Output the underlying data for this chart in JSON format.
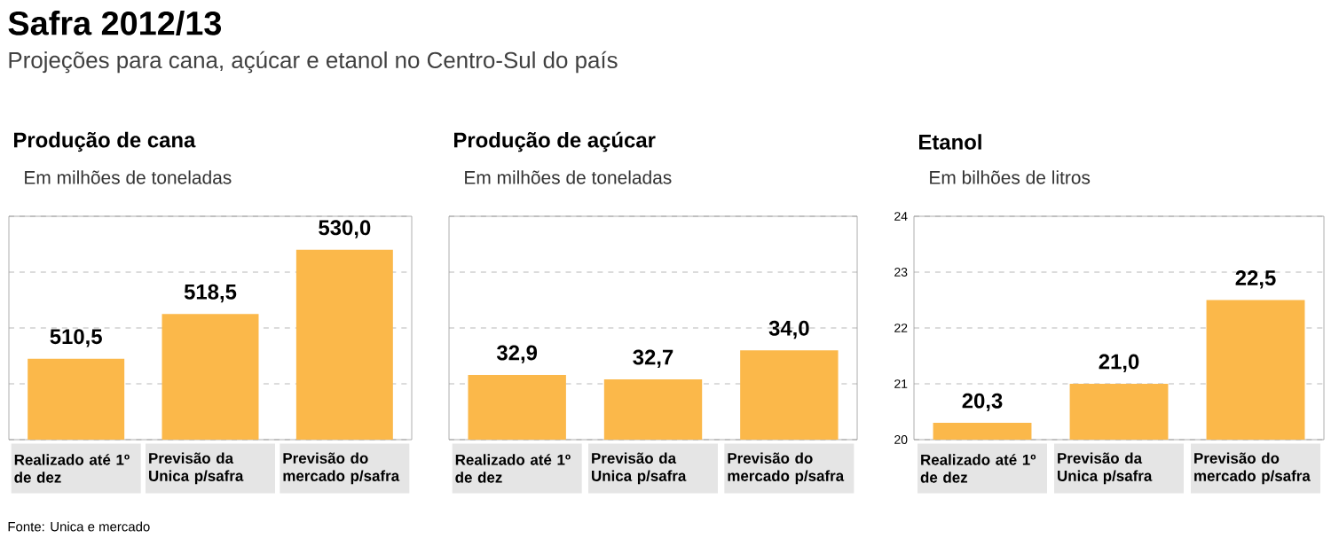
{
  "chart_data": [
    {
      "type": "other",
      "title": "Safra 2012/13",
      "subtitle": "Projeções para cana, açúcar e etanol no Centro-Sul do país",
      "annotations": [
        "Fonte: Unica e mercado"
      ]
    },
    {
      "type": "bar",
      "title": "Produção de cana",
      "subtitle": "Em milhões de toneladas",
      "categories": [
        "Realizado até 1º de dez",
        "Previsão da Unica p/safra",
        "Previsão do mercado p/safra"
      ],
      "values": [
        510.5,
        518.5,
        530.0
      ],
      "value_labels": [
        "510,5",
        "518,5",
        "530,0"
      ],
      "color": "#fbb84a",
      "ylim": [
        496,
        536
      ],
      "yticks": [
        {
          "value": 496,
          "label": null
        },
        {
          "value": 506,
          "label": null
        },
        {
          "value": 516,
          "label": null
        },
        {
          "value": 526,
          "label": null
        },
        {
          "value": 536,
          "label": null
        }
      ],
      "grid": "y",
      "tick_labels": "x"
    },
    {
      "type": "bar",
      "title": "Produção de açúcar",
      "subtitle": "Em milhões de toneladas",
      "categories": [
        "Realizado até 1º de dez",
        "Previsão da Unica p/safra",
        "Previsão do mercado p/safra"
      ],
      "values": [
        32.9,
        32.7,
        34.0
      ],
      "value_labels": [
        "32,9",
        "32,7",
        "34,0"
      ],
      "color": "#fbb84a",
      "ylim": [
        30,
        40
      ],
      "yticks": [
        {
          "value": 30,
          "label": null
        },
        {
          "value": 32.5,
          "label": null
        },
        {
          "value": 35,
          "label": null
        },
        {
          "value": 37.5,
          "label": null
        },
        {
          "value": 40,
          "label": null
        }
      ],
      "grid": "y",
      "tick_labels": "x"
    },
    {
      "type": "bar",
      "title": "Etanol",
      "subtitle": "Em bilhões de litros",
      "categories": [
        "Realizado até 1º de dez",
        "Previsão da Unica p/safra",
        "Previsão do mercado p/safra"
      ],
      "values": [
        20.3,
        21.0,
        22.5
      ],
      "value_labels": [
        "20,3",
        "21,0",
        "22,5"
      ],
      "color": "#fbb84a",
      "ylim": [
        20,
        24
      ],
      "yticks": [
        20,
        21,
        22,
        23,
        24
      ],
      "grid": "y"
    }
  ]
}
